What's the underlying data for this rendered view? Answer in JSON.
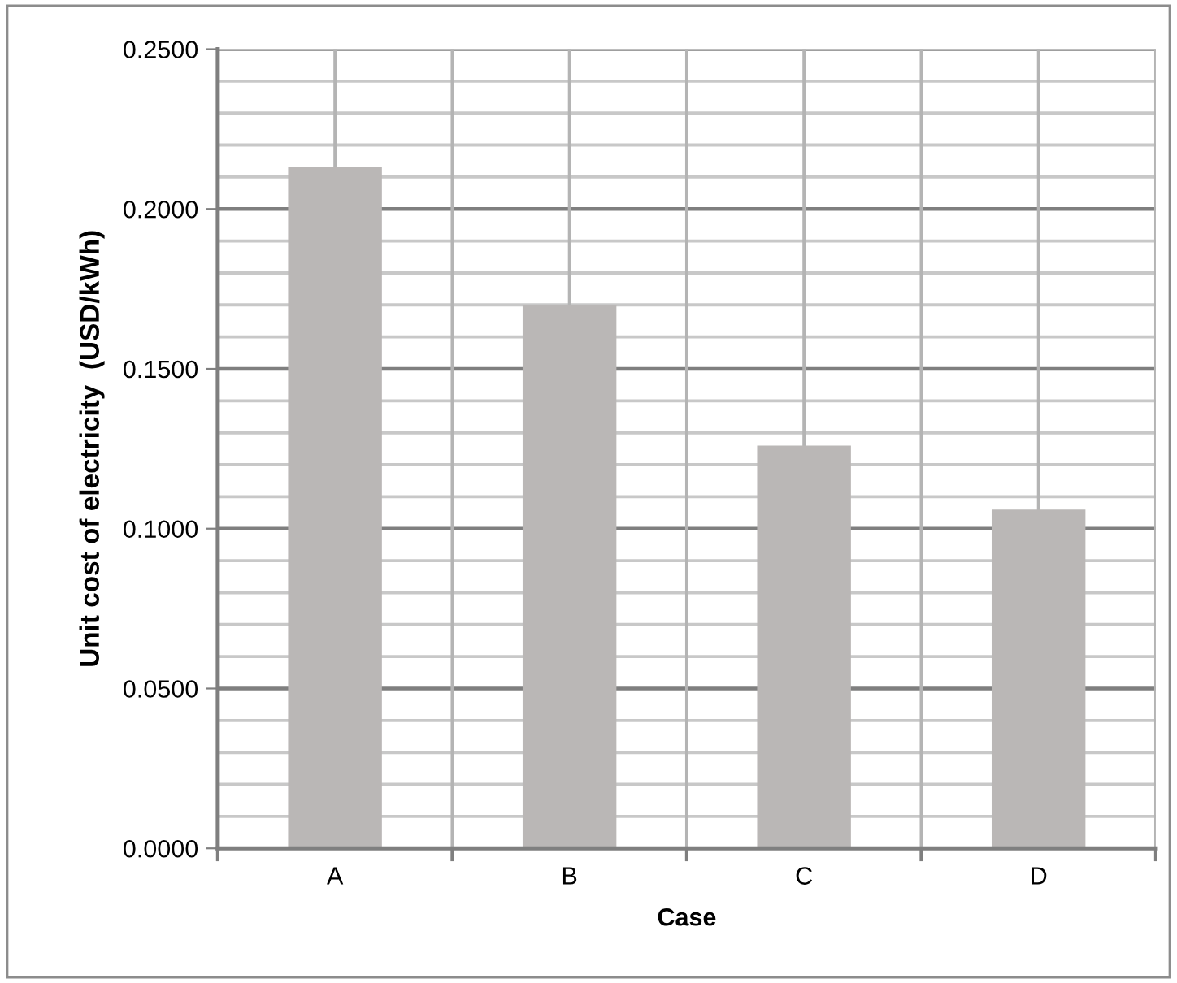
{
  "chart_data": {
    "type": "bar",
    "xlabel": "Case",
    "ylabel": "Unit cost of electricity  (USD/kWh)",
    "categories": [
      "A",
      "B",
      "C",
      "D"
    ],
    "values": [
      0.213,
      0.17,
      0.126,
      0.106
    ],
    "color": "#bab7b6",
    "ylim": [
      0,
      0.25
    ],
    "yticks": [
      {
        "value": 0,
        "label": "0.0000"
      },
      {
        "value": 0.01,
        "label": null
      },
      {
        "value": 0.02,
        "label": null
      },
      {
        "value": 0.03,
        "label": null
      },
      {
        "value": 0.04,
        "label": null
      },
      {
        "value": 0.05,
        "label": "0.0500"
      },
      {
        "value": 0.06,
        "label": null
      },
      {
        "value": 0.07,
        "label": null
      },
      {
        "value": 0.08,
        "label": null
      },
      {
        "value": 0.09,
        "label": null
      },
      {
        "value": 0.1,
        "label": "0.1000"
      },
      {
        "value": 0.11,
        "label": null
      },
      {
        "value": 0.12,
        "label": null
      },
      {
        "value": 0.13,
        "label": null
      },
      {
        "value": 0.14,
        "label": null
      },
      {
        "value": 0.15,
        "label": "0.1500"
      },
      {
        "value": 0.16,
        "label": null
      },
      {
        "value": 0.17,
        "label": null
      },
      {
        "value": 0.18,
        "label": null
      },
      {
        "value": 0.19,
        "label": null
      },
      {
        "value": 0.2,
        "label": "0.2000"
      },
      {
        "value": 0.21,
        "label": null
      },
      {
        "value": 0.22,
        "label": null
      },
      {
        "value": 0.23,
        "label": null
      },
      {
        "value": 0.24,
        "label": null
      },
      {
        "value": 0.25,
        "label": "0.2500"
      }
    ],
    "grid": true
  }
}
